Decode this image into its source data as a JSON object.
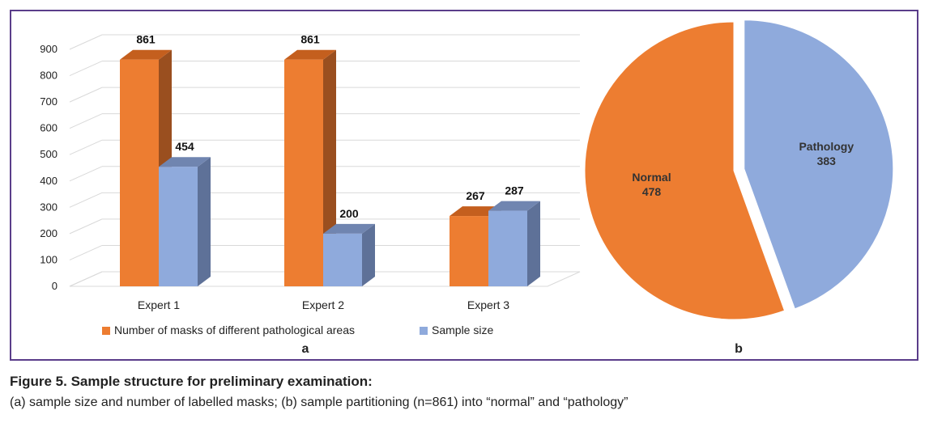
{
  "chart_data": [
    {
      "type": "bar",
      "panel_label": "a",
      "categories": [
        "Expert 1",
        "Expert 2",
        "Expert 3"
      ],
      "series": [
        {
          "name": "Number of masks of different pathological areas",
          "values": [
            861,
            861,
            267
          ],
          "color": "#ED7D31",
          "side_color": "#9A4F1F",
          "top_color": "#C45F1E"
        },
        {
          "name": "Sample size",
          "values": [
            454,
            200,
            287
          ],
          "color": "#8FAADC",
          "side_color": "#5E7198",
          "top_color": "#7085B0"
        }
      ],
      "ylim": [
        0,
        900
      ],
      "yticks": [
        "0",
        "100",
        "200",
        "300",
        "400",
        "500",
        "600",
        "700",
        "800",
        "900"
      ],
      "data_labels": [
        [
          "861",
          "861",
          "267"
        ],
        [
          "454",
          "200",
          "287"
        ]
      ],
      "legend_position": "bottom",
      "grid": true
    },
    {
      "type": "pie",
      "panel_label": "b",
      "slices": [
        {
          "label": "Normal",
          "value": 478,
          "value_label": "478",
          "color": "#ED7D31"
        },
        {
          "label": "Pathology",
          "value": 383,
          "value_label": "383",
          "color": "#8FAADC",
          "exploded": true
        }
      ]
    }
  ],
  "caption": {
    "title": "Figure 5. Sample structure for preliminary examination:",
    "text": "(a) sample size and number of labelled masks; (b) sample partitioning (n=861) into “normal” and “pathology”"
  }
}
